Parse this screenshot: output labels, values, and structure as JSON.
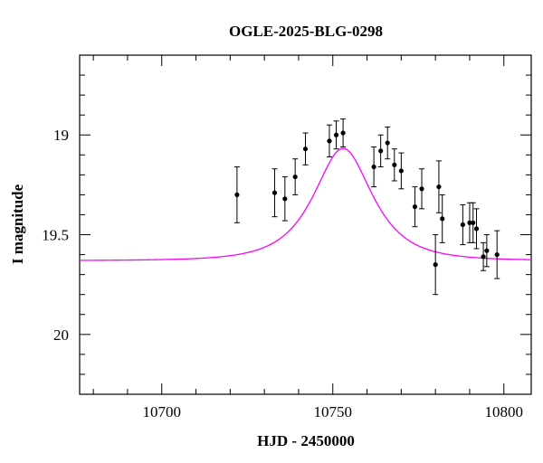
{
  "chart_data": {
    "type": "scatter",
    "title": "OGLE-2025-BLG-0298",
    "xlabel": "HJD - 2450000",
    "ylabel": "I magnitude",
    "xlim": [
      10676,
      10808
    ],
    "ylim": [
      20.3,
      18.6
    ],
    "y_inverted": true,
    "x_ticks": [
      10700,
      10750,
      10800
    ],
    "y_ticks": [
      19,
      19.5,
      20
    ],
    "x_minor_step": 10,
    "y_minor_step": 0.1,
    "grid": false,
    "model_color": "#ff00ff",
    "point_color": "#000000",
    "model": {
      "t0": 10753.0,
      "tE": 12.5,
      "u0": 0.7,
      "base_mag": 19.63
    },
    "series": [
      {
        "points": [
          {
            "x": 10722,
            "y": 19.3,
            "err": 0.14
          },
          {
            "x": 10733,
            "y": 19.29,
            "err": 0.12
          },
          {
            "x": 10736,
            "y": 19.32,
            "err": 0.11
          },
          {
            "x": 10739,
            "y": 19.21,
            "err": 0.09
          },
          {
            "x": 10742,
            "y": 19.07,
            "err": 0.08
          },
          {
            "x": 10749,
            "y": 19.03,
            "err": 0.08
          },
          {
            "x": 10751,
            "y": 19.0,
            "err": 0.07
          },
          {
            "x": 10753,
            "y": 18.99,
            "err": 0.07
          },
          {
            "x": 10762,
            "y": 19.16,
            "err": 0.1
          },
          {
            "x": 10764,
            "y": 19.08,
            "err": 0.08
          },
          {
            "x": 10766,
            "y": 19.04,
            "err": 0.08
          },
          {
            "x": 10768,
            "y": 19.15,
            "err": 0.08
          },
          {
            "x": 10770,
            "y": 19.18,
            "err": 0.09
          },
          {
            "x": 10774,
            "y": 19.36,
            "err": 0.1
          },
          {
            "x": 10776,
            "y": 19.27,
            "err": 0.1
          },
          {
            "x": 10780,
            "y": 19.65,
            "err": 0.15
          },
          {
            "x": 10781,
            "y": 19.26,
            "err": 0.13
          },
          {
            "x": 10782,
            "y": 19.42,
            "err": 0.12
          },
          {
            "x": 10788,
            "y": 19.45,
            "err": 0.1
          },
          {
            "x": 10790,
            "y": 19.44,
            "err": 0.1
          },
          {
            "x": 10791,
            "y": 19.44,
            "err": 0.1
          },
          {
            "x": 10792,
            "y": 19.47,
            "err": 0.1
          },
          {
            "x": 10794,
            "y": 19.61,
            "err": 0.07
          },
          {
            "x": 10795,
            "y": 19.58,
            "err": 0.08
          },
          {
            "x": 10798,
            "y": 19.6,
            "err": 0.12
          }
        ]
      }
    ]
  }
}
